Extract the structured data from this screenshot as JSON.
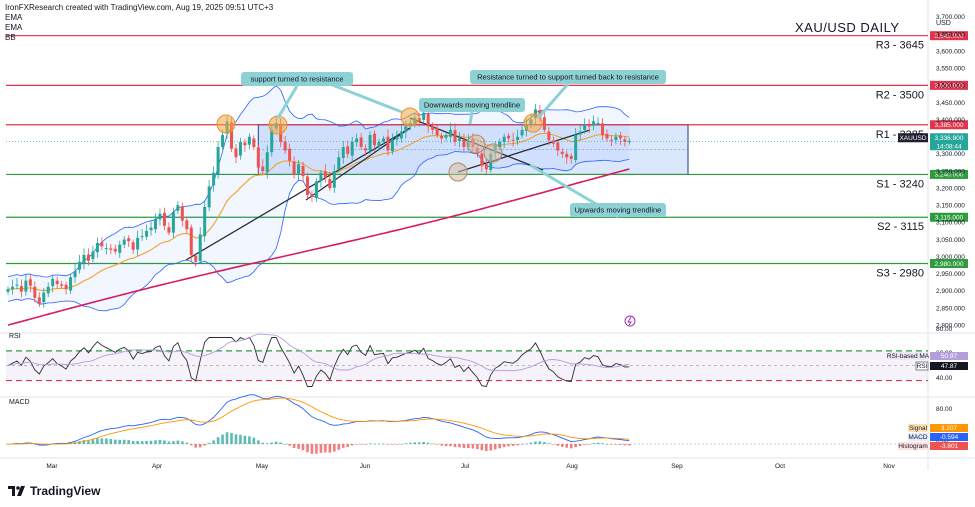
{
  "header": {
    "created": "IronFXResearch created with TradingView.com, Aug 19, 2025 09:51 UTC+3",
    "indicators": [
      "EMA",
      "EMA",
      "BB"
    ]
  },
  "title": "XAU/USD DAILY",
  "currency": "USD",
  "brand": "TradingView",
  "colors": {
    "resistance": "#e0344c",
    "support": "#2e9b3d",
    "up": "#26a69a",
    "down": "#ef5350",
    "ema_fast": "#f2a227",
    "ema_slow": "#d81b60",
    "bb": "#2962ff",
    "range_fill": "#cfe0fb",
    "callout": "#8ed1d5",
    "circle": "#f4a742"
  },
  "levels": [
    {
      "name": "R3 - 3645",
      "value": 3645,
      "tag": "3,645.000",
      "kind": "resistance"
    },
    {
      "name": "R2 - 3500",
      "value": 3500,
      "tag": "3,500.000",
      "kind": "resistance"
    },
    {
      "name": "R1 - 3385",
      "value": 3385,
      "tag": "3,385.000",
      "kind": "resistance"
    },
    {
      "name": "S1 - 3240",
      "value": 3240,
      "tag": "3,240.000",
      "kind": "support"
    },
    {
      "name": "S2 - 3115",
      "value": 3115,
      "tag": "3,115.000",
      "kind": "support"
    },
    {
      "name": "S3 - 2980",
      "value": 2980,
      "tag": "2,980.000",
      "kind": "support"
    }
  ],
  "annotations": {
    "support_to_resistance": "support turned to resistance",
    "resistance_support_resistance": "Resistance turned to support turned back to resistance",
    "downwards_trendline": "Downwards moving trendline",
    "upwards_trendline": "Upwards moving trendline"
  },
  "price_tag": {
    "symbol": "XAUUSD",
    "price": "3,336.800",
    "countdown": "14:08:44"
  },
  "rsi_panel": {
    "label": "RSI",
    "ma_label": "RSI-based MA",
    "ma_value": "50.97",
    "rsi_label": "RSI",
    "rsi_value": "47.87",
    "ticks": [
      "80.00",
      "60.00",
      "40.00"
    ]
  },
  "macd_panel": {
    "label": "MACD",
    "signal_label": "Signal",
    "signal_value": "3.207",
    "macd_label": "MACD",
    "macd_value": "-0.594",
    "hist_label": "Histogram",
    "hist_value": "-3.801",
    "ticks": [
      "80.00",
      "0.00"
    ]
  },
  "x_axis": [
    "Mar",
    "Apr",
    "May",
    "Jun",
    "Jul",
    "Aug",
    "Sep",
    "Oct",
    "Nov"
  ],
  "chart_data": {
    "type": "candlestick",
    "title": "XAU/USD DAILY",
    "y_ticks": [
      3700,
      3650,
      3600,
      3550,
      3500,
      3450,
      3400,
      3350,
      3300,
      3250,
      3200,
      3150,
      3100,
      3050,
      3000,
      2950,
      2900,
      2850,
      2800
    ],
    "y_range": [
      2780,
      3720
    ],
    "closes": [
      2905,
      2912,
      2918,
      2898,
      2930,
      2915,
      2880,
      2862,
      2895,
      2912,
      2935,
      2920,
      2915,
      2905,
      2940,
      2958,
      2985,
      3005,
      2988,
      3015,
      3040,
      3030,
      3025,
      3020,
      3015,
      3035,
      3050,
      3045,
      3020,
      3055,
      3060,
      3075,
      3085,
      3110,
      3125,
      3090,
      3070,
      3130,
      3150,
      3105,
      3080,
      3005,
      2985,
      3065,
      3145,
      3205,
      3245,
      3320,
      3355,
      3395,
      3315,
      3290,
      3335,
      3325,
      3350,
      3320,
      3260,
      3250,
      3305,
      3370,
      3390,
      3335,
      3310,
      3280,
      3240,
      3270,
      3235,
      3180,
      3175,
      3220,
      3245,
      3230,
      3200,
      3250,
      3290,
      3320,
      3300,
      3335,
      3345,
      3320,
      3310,
      3355,
      3325,
      3335,
      3345,
      3310,
      3340,
      3350,
      3365,
      3380,
      3390,
      3405,
      3395,
      3420,
      3380,
      3370,
      3355,
      3345,
      3355,
      3370,
      3335,
      3345,
      3320,
      3340,
      3320,
      3300,
      3265,
      3255,
      3300,
      3325,
      3335,
      3350,
      3345,
      3340,
      3350,
      3370,
      3385,
      3400,
      3430,
      3405,
      3370,
      3340,
      3330,
      3310,
      3300,
      3290,
      3285,
      3355,
      3365,
      3385,
      3380,
      3395,
      3390,
      3355,
      3345,
      3340,
      3350,
      3345,
      3335,
      3337
    ],
    "dates_start": "2025-02-19",
    "note_series": "daily closes approximated; x range Feb 2025 to Nov 2025 with data ending Aug 19 2025"
  }
}
